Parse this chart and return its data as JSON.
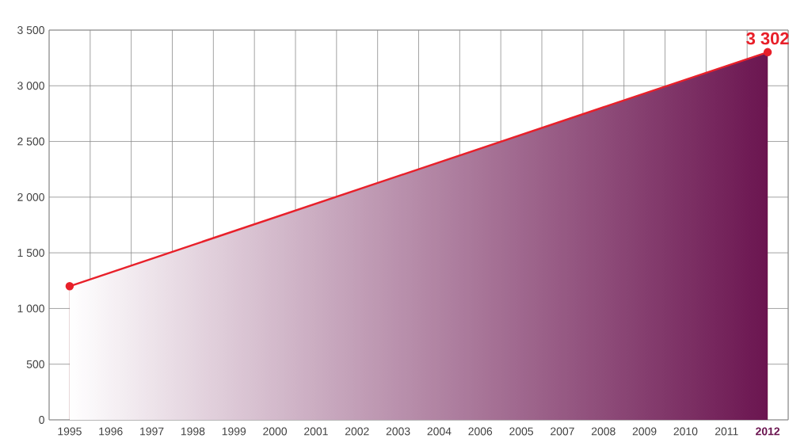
{
  "chart_data": {
    "type": "area",
    "categories": [
      "1995",
      "1996",
      "1997",
      "1998",
      "1999",
      "2000",
      "2001",
      "2002",
      "2003",
      "2004",
      "2006",
      "2005",
      "2007",
      "2008",
      "2009",
      "2010",
      "2011",
      "2012"
    ],
    "series": [
      {
        "color": "#e8202a",
        "values": [
          1200,
          null,
          null,
          null,
          null,
          null,
          null,
          null,
          null,
          null,
          null,
          null,
          null,
          null,
          null,
          null,
          null,
          3302
        ]
      }
    ],
    "ylim": [
      0,
      3500
    ],
    "yticks": [
      {
        "value": 0,
        "label": "0"
      },
      {
        "value": 500,
        "label": "500"
      },
      {
        "value": 1000,
        "label": "1 000"
      },
      {
        "value": 1500,
        "label": "1 500"
      },
      {
        "value": 2000,
        "label": "2 000"
      },
      {
        "value": 2500,
        "label": "2 500"
      },
      {
        "value": 3000,
        "label": "3 000"
      },
      {
        "value": 3500,
        "label": "3 500"
      }
    ],
    "grid": true,
    "marker": "circle",
    "annotations": [
      {
        "text": "3 302",
        "x": "2012",
        "y": 3302
      }
    ]
  }
}
